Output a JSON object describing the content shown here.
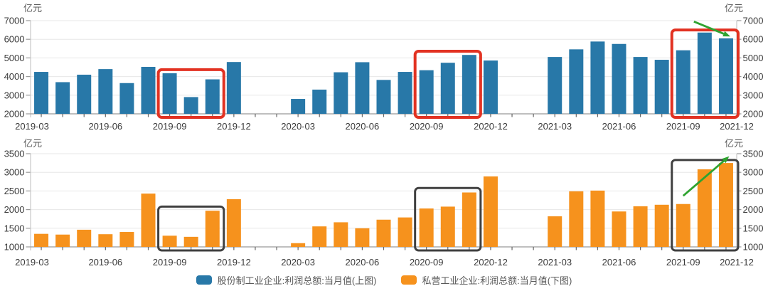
{
  "figure": {
    "unit_label": "亿元"
  },
  "x_axis": {
    "start": "2019-03",
    "end": "2021-12",
    "labeled_ticks": [
      "2019-03",
      "2019-06",
      "2019-09",
      "2019-12",
      "2020-03",
      "2020-06",
      "2020-09",
      "2020-12",
      "2021-03",
      "2021-06",
      "2021-09",
      "2021-12"
    ]
  },
  "legend": {
    "items": [
      {
        "label": "股份制工业企业:利润总额:当月值(上图)",
        "color": "#2878a8"
      },
      {
        "label": "私营工业企业:利润总额:当月值(下图)",
        "color": "#f6921d"
      }
    ]
  },
  "colors": {
    "blue_bar": "#2878a8",
    "orange_bar": "#f6921d",
    "red_box": "#e23222",
    "gray_box": "#404040",
    "green_arrow": "#2fa330",
    "grid_line": "#e7e7e7",
    "axis_line": "#999999",
    "side_axis_line": "#c8c8c8",
    "tick_text": "#3a3a3a",
    "unit_text": "#595959"
  },
  "chart_data": [
    {
      "type": "bar",
      "position": "top",
      "series_name": "股份制工业企业:利润总额:当月值",
      "unit": "亿元",
      "bar_color": "#2878a8",
      "ylim": [
        2000,
        7000
      ],
      "ytick_step": 1000,
      "x": [
        "2019-03",
        "2019-04",
        "2019-05",
        "2019-06",
        "2019-07",
        "2019-08",
        "2019-09",
        "2019-10",
        "2019-11",
        "2019-12",
        "2020-03",
        "2020-04",
        "2020-05",
        "2020-06",
        "2020-07",
        "2020-08",
        "2020-09",
        "2020-10",
        "2020-11",
        "2020-12",
        "2021-03",
        "2021-04",
        "2021-05",
        "2021-06",
        "2021-07",
        "2021-08",
        "2021-09",
        "2021-10",
        "2021-11"
      ],
      "values": [
        4250,
        3700,
        4100,
        4400,
        3650,
        4520,
        4180,
        2900,
        3850,
        4780,
        2800,
        3300,
        4230,
        4770,
        3820,
        4250,
        4340,
        4740,
        5160,
        4860,
        5050,
        5460,
        5880,
        5750,
        5050,
        4900,
        5410,
        6360,
        6050
      ],
      "annotations": {
        "boxes": [
          {
            "from": "2019-09",
            "to": "2019-11",
            "top_value": 4370,
            "color": "#e23222",
            "stroke_width": 4
          },
          {
            "from": "2020-09",
            "to": "2020-11",
            "top_value": 5360,
            "color": "#e23222",
            "stroke_width": 4
          },
          {
            "from": "2021-09",
            "to": "2021-12",
            "top_value": 6500,
            "color": "#e23222",
            "stroke_width": 4
          }
        ],
        "arrows": [
          {
            "m1": 30.5,
            "v1": 6950,
            "m2": 32.2,
            "v2": 6150,
            "color": "#2fa330"
          }
        ]
      }
    },
    {
      "type": "bar",
      "position": "bottom",
      "series_name": "私营工业企业:利润总额:当月值",
      "unit": "亿元",
      "bar_color": "#f6921d",
      "ylim": [
        1000,
        3500
      ],
      "ytick_step": 500,
      "x": [
        "2019-03",
        "2019-04",
        "2019-05",
        "2019-06",
        "2019-07",
        "2019-08",
        "2019-09",
        "2019-10",
        "2019-11",
        "2019-12",
        "2020-03",
        "2020-04",
        "2020-05",
        "2020-06",
        "2020-07",
        "2020-08",
        "2020-09",
        "2020-10",
        "2020-11",
        "2020-12",
        "2021-03",
        "2021-04",
        "2021-05",
        "2021-06",
        "2021-07",
        "2021-08",
        "2021-09",
        "2021-10",
        "2021-11"
      ],
      "values": [
        1350,
        1330,
        1460,
        1340,
        1400,
        2430,
        1300,
        1270,
        1970,
        2280,
        1100,
        1550,
        1660,
        1500,
        1730,
        1790,
        2030,
        2080,
        2460,
        2890,
        1820,
        2490,
        2510,
        1950,
        2090,
        2130,
        2150,
        3080,
        3250
      ],
      "annotations": {
        "boxes": [
          {
            "from": "2019-09",
            "to": "2019-11",
            "top_value": 2080,
            "color": "#404040",
            "stroke_width": 3
          },
          {
            "from": "2020-09",
            "to": "2020-11",
            "top_value": 2580,
            "color": "#404040",
            "stroke_width": 3
          },
          {
            "from": "2021-09",
            "to": "2021-12",
            "top_value": 3330,
            "color": "#404040",
            "stroke_width": 3
          }
        ],
        "arrows": [
          {
            "m1": 30.0,
            "v1": 2370,
            "m2": 32.15,
            "v2": 3430,
            "color": "#2fa330"
          }
        ]
      }
    }
  ]
}
